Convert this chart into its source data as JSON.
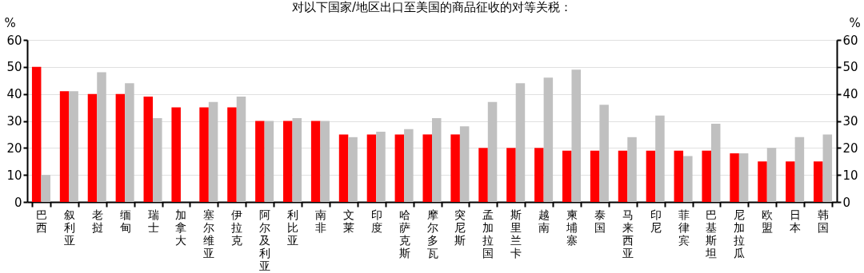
{
  "chart_data": {
    "type": "bar",
    "title": "对以下国家/地区出口至美国的商品征收的对等关税：",
    "ylabel": "%",
    "y2label": "%",
    "categories": [
      "巴西",
      "叙利亚",
      "老挝",
      "缅甸",
      "瑞士",
      "加拿大",
      "塞尔维亚",
      "伊拉克",
      "阿尔及利亚",
      "利比亚",
      "南非",
      "文莱",
      "印度",
      "哈萨克斯",
      "摩尔多瓦",
      "突尼斯",
      "孟加拉国",
      "斯里兰卡",
      "越南",
      "柬埔寨",
      "泰国",
      "马来西亚",
      "印尼",
      "菲律宾",
      "巴基斯坦",
      "尼加拉瓜",
      "欧盟",
      "日本",
      "韩国"
    ],
    "series": [
      {
        "color": "#ff0000",
        "values": [
          50,
          41,
          40,
          40,
          39,
          35,
          35,
          35,
          30,
          30,
          30,
          25,
          25,
          25,
          25,
          25,
          20,
          20,
          20,
          19,
          19,
          19,
          19,
          19,
          19,
          18,
          15,
          15,
          15
        ]
      },
      {
        "color": "#c0c0c0",
        "axis": "y2",
        "values": [
          10,
          41,
          48,
          44,
          31,
          null,
          37,
          39,
          30,
          31,
          30,
          24,
          26,
          27,
          31,
          28,
          37,
          44,
          46,
          49,
          36,
          24,
          32,
          17,
          29,
          18,
          20,
          24,
          25
        ]
      }
    ],
    "ylim": [
      0,
      60
    ],
    "yticks": [
      0,
      10,
      20,
      30,
      40,
      50,
      60
    ],
    "y2lim": [
      0,
      60
    ],
    "y2ticks": [
      0,
      10,
      20,
      30,
      40,
      50,
      60
    ],
    "grid": "y",
    "legend": false
  }
}
